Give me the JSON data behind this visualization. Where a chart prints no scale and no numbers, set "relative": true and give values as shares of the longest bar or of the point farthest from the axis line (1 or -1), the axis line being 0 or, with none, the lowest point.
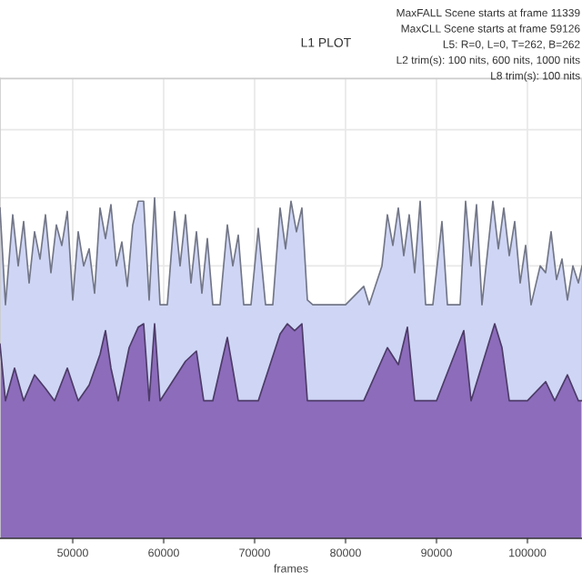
{
  "chart_data": {
    "type": "area",
    "title": "L1 PLOT",
    "xlabel": "frames",
    "relative": true,
    "annotations": [
      "MaxFALL Scene starts at frame 11339",
      "MaxCLL Scene starts at frame 59126",
      "L5: R=0, L=0, T=262, B=262",
      "L2 trim(s): 100 nits, 600 nits, 1000 nits",
      "L8 trim(s): 100 nits"
    ],
    "xlim": [
      42000,
      106000
    ],
    "xticks": [
      50000,
      60000,
      70000,
      80000,
      90000,
      100000
    ],
    "grid": true,
    "legend": false,
    "series": [
      {
        "color": "#cfd6f5",
        "x": [
          42000,
          42600,
          43400,
          44000,
          44600,
          45200,
          45800,
          46400,
          47000,
          47600,
          48200,
          48800,
          49400,
          50000,
          50600,
          51200,
          51800,
          52400,
          53000,
          53600,
          54200,
          54800,
          55400,
          56000,
          56600,
          57200,
          57800,
          58400,
          59000,
          59600,
          60400,
          61200,
          61800,
          62400,
          63000,
          63600,
          64200,
          64800,
          65400,
          66200,
          67000,
          67600,
          68200,
          68800,
          69600,
          70400,
          71200,
          72000,
          72800,
          73400,
          74000,
          74600,
          75200,
          75800,
          76400,
          78000,
          80000,
          82000,
          82600,
          84000,
          84600,
          85200,
          85800,
          86400,
          87000,
          87600,
          88200,
          88800,
          89600,
          90600,
          91200,
          92600,
          93200,
          93800,
          94400,
          95000,
          96200,
          96800,
          97400,
          98000,
          98600,
          99200,
          99800,
          100400,
          101400,
          102000,
          102600,
          103200,
          103800,
          104400,
          105000,
          105600,
          106000
        ],
        "values": [
          0.97,
          0.686,
          0.95,
          0.8,
          0.93,
          0.75,
          0.9,
          0.82,
          0.95,
          0.78,
          0.92,
          0.86,
          0.96,
          0.7,
          0.9,
          0.8,
          0.85,
          0.72,
          0.97,
          0.88,
          0.98,
          0.8,
          0.87,
          0.74,
          0.92,
          0.99,
          0.99,
          0.7,
          1.0,
          0.686,
          0.686,
          0.96,
          0.8,
          0.95,
          0.75,
          0.9,
          0.72,
          0.88,
          0.686,
          0.686,
          0.92,
          0.8,
          0.89,
          0.686,
          0.686,
          0.91,
          0.686,
          0.686,
          0.97,
          0.85,
          0.99,
          0.9,
          0.97,
          0.7,
          0.686,
          0.686,
          0.686,
          0.74,
          0.686,
          0.8,
          0.95,
          0.86,
          0.97,
          0.83,
          0.95,
          0.78,
          0.99,
          0.686,
          0.686,
          0.93,
          0.686,
          0.686,
          0.99,
          0.8,
          0.98,
          0.686,
          0.99,
          0.85,
          0.97,
          0.83,
          0.93,
          0.75,
          0.86,
          0.686,
          0.8,
          0.78,
          0.9,
          0.76,
          0.82,
          0.7,
          0.8,
          0.75,
          0.8
        ]
      },
      {
        "color": "#8c6cbb",
        "x": [
          42000,
          42600,
          43600,
          44600,
          45800,
          47000,
          48000,
          49400,
          50600,
          51800,
          53000,
          53600,
          54200,
          55000,
          56200,
          57200,
          57800,
          58400,
          59000,
          59600,
          62400,
          63600,
          64400,
          65400,
          67000,
          68200,
          70400,
          72800,
          73600,
          74400,
          75200,
          75800,
          78000,
          82000,
          84600,
          85800,
          86800,
          87600,
          90000,
          93000,
          93800,
          96400,
          97200,
          98000,
          100000,
          102000,
          103000,
          104400,
          105600,
          106000
        ],
        "values": [
          0.57,
          0.404,
          0.5,
          0.404,
          0.48,
          0.44,
          0.404,
          0.5,
          0.404,
          0.45,
          0.54,
          0.61,
          0.5,
          0.404,
          0.56,
          0.62,
          0.63,
          0.404,
          0.63,
          0.404,
          0.52,
          0.55,
          0.404,
          0.404,
          0.59,
          0.404,
          0.404,
          0.6,
          0.63,
          0.61,
          0.63,
          0.404,
          0.404,
          0.404,
          0.56,
          0.51,
          0.62,
          0.404,
          0.404,
          0.61,
          0.404,
          0.63,
          0.56,
          0.404,
          0.404,
          0.46,
          0.404,
          0.48,
          0.404,
          0.404
        ]
      }
    ]
  }
}
